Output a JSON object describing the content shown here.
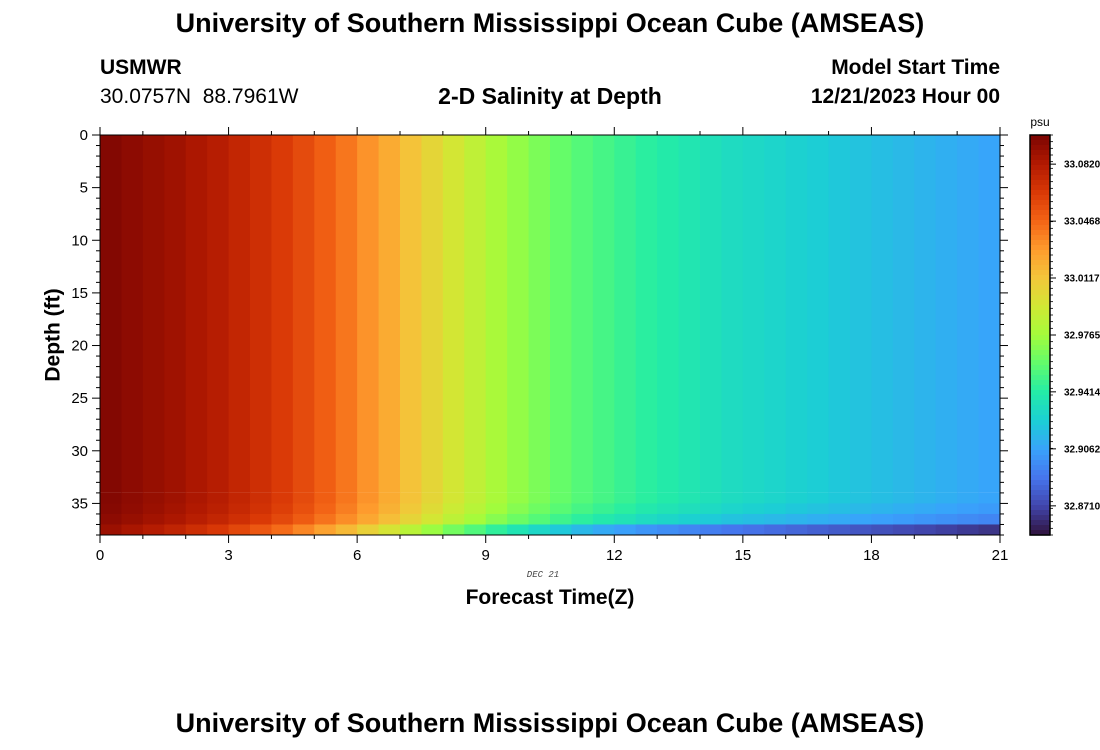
{
  "header": {
    "title": "University of Southern Mississippi Ocean Cube (AMSEAS)",
    "station": "USMWR",
    "coordinates": "30.0757N  88.7961W",
    "subtitle": "2-D Salinity at Depth",
    "model_start_label": "Model Start Time",
    "model_start_value": "12/21/2023 Hour 00"
  },
  "footer": {
    "title": "University of Southern Mississippi Ocean Cube (AMSEAS)"
  },
  "colors": {
    "palette": [
      "#30123b",
      "#4145ab",
      "#4675ed",
      "#39a2fc",
      "#1bcfd4",
      "#24eca6",
      "#61fc6c",
      "#a4fc3b",
      "#d1e834",
      "#f3c63a",
      "#fe9b2d",
      "#f36315",
      "#d93806",
      "#b11901",
      "#7a0402"
    ]
  },
  "chart_data": {
    "type": "heatmap",
    "title": "2-D Salinity at Depth",
    "xlabel": "Forecast Time(Z)",
    "ylabel": "Depth (ft)",
    "x_ticks": [
      "0",
      "3",
      "6",
      "9",
      "12",
      "15",
      "18",
      "21"
    ],
    "x_tick_values": [
      0,
      3,
      6,
      9,
      12,
      15,
      18,
      21
    ],
    "y_ticks": [
      "0",
      "5",
      "10",
      "15",
      "20",
      "25",
      "30",
      "35"
    ],
    "y_tick_values": [
      0,
      5,
      10,
      15,
      20,
      25,
      30,
      35
    ],
    "xlim": [
      0,
      21
    ],
    "ylim": [
      0,
      38
    ],
    "date_label": "DEC 21",
    "colorbar": {
      "unit": "psu",
      "range": [
        32.853,
        33.1
      ],
      "labels": [
        "33.0820",
        "33.0468",
        "33.0117",
        "32.9765",
        "32.9414",
        "32.9062",
        "32.8710"
      ],
      "label_values": [
        33.082,
        33.0468,
        33.0117,
        32.9765,
        32.9414,
        32.9062,
        32.871
      ]
    },
    "surface_salinity_by_hour": [
      33.097,
      33.094,
      33.091,
      33.088,
      33.084,
      33.08,
      33.075,
      33.07,
      33.064,
      33.057,
      33.049,
      33.041,
      33.032,
      33.023,
      33.013,
      33.004,
      32.995,
      32.987,
      32.979,
      32.972,
      32.966,
      32.96,
      32.955,
      32.951,
      32.947,
      32.943,
      32.94,
      32.937,
      32.934,
      32.931,
      32.929,
      32.927,
      32.925,
      32.923,
      32.921,
      32.919,
      32.917,
      32.915,
      32.913,
      32.911,
      32.909,
      32.907
    ],
    "bottom_layers_depth_ft": [
      34.5,
      35.5,
      36.5,
      37.5
    ],
    "bottom_layer_offsets_psu": [
      0.0,
      -0.004,
      -0.012,
      -0.03
    ]
  }
}
